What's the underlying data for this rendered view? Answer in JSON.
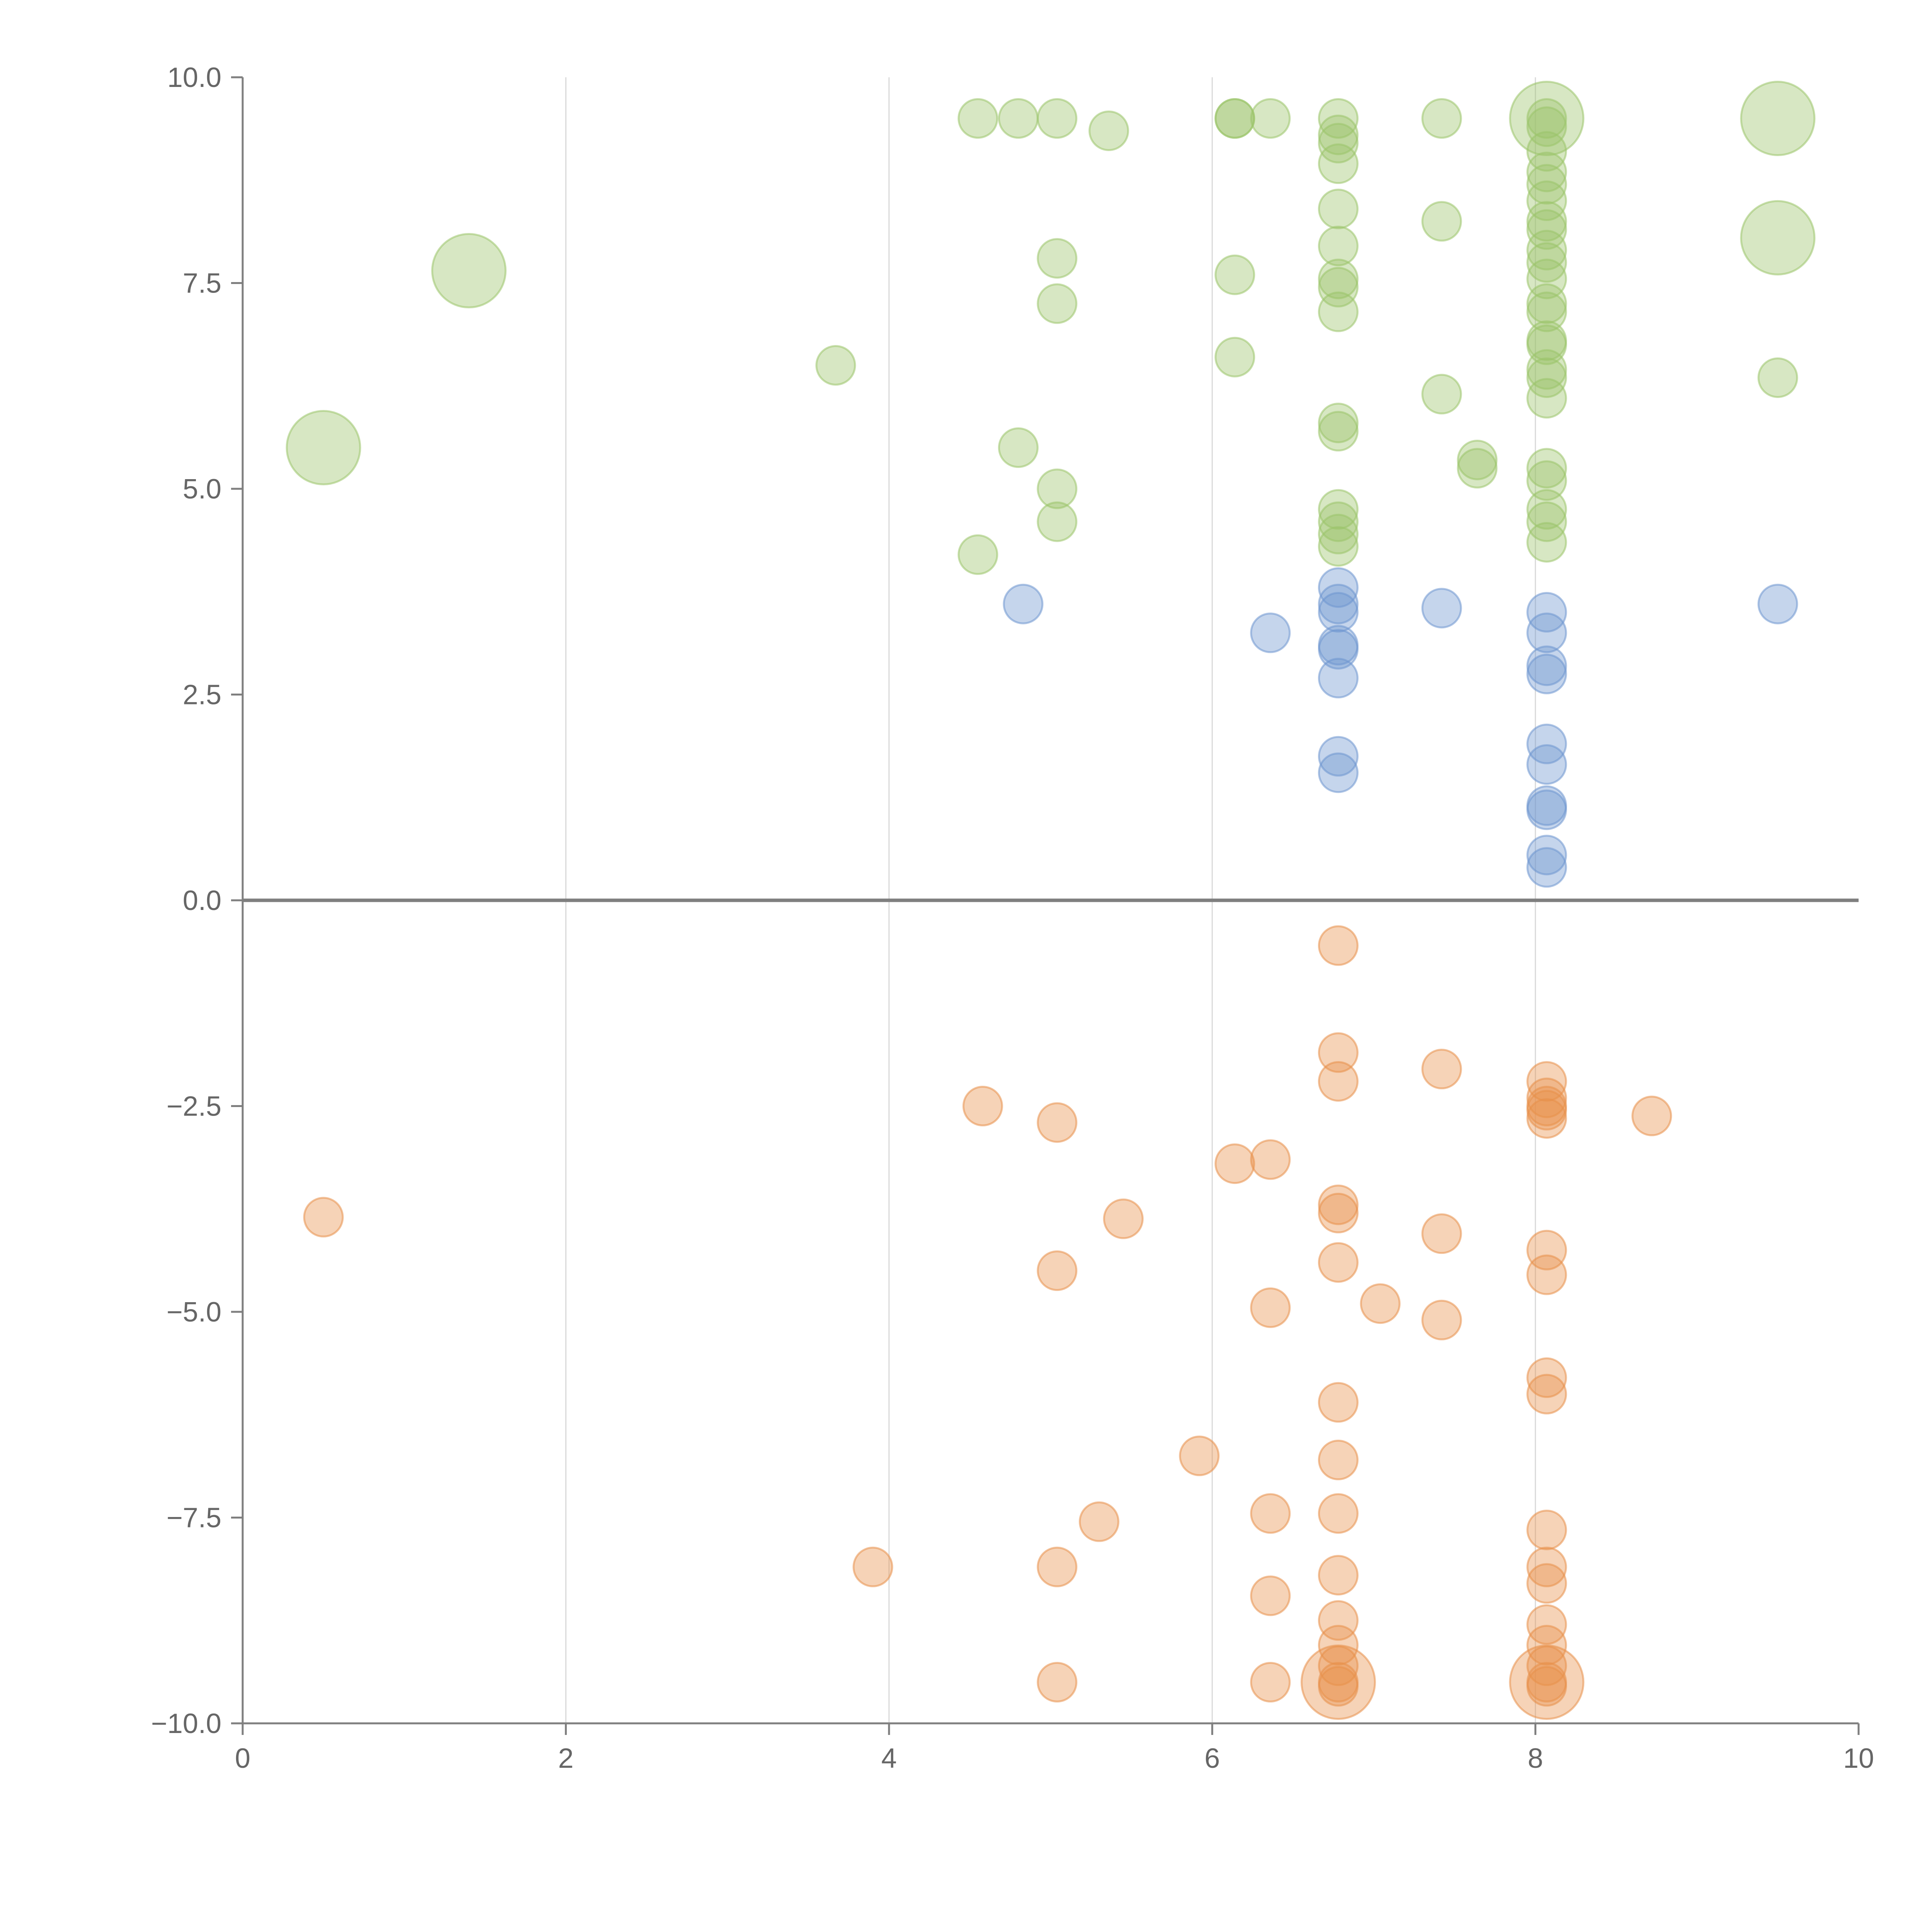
{
  "chart_data": {
    "type": "scatter",
    "title": "",
    "xlabel": "",
    "ylabel": "",
    "xlim": [
      0,
      10
    ],
    "ylim": [
      -10,
      10
    ],
    "x_ticks": [
      "0",
      "2",
      "4",
      "6",
      "8",
      "10"
    ],
    "y_ticks": [
      "10.0",
      "7.5",
      "5.0",
      "2.5",
      "0.0",
      "−2.5",
      "−5.0",
      "−7.5",
      "−10.0"
    ],
    "grid": "vertical",
    "zero_line": true,
    "colors": {
      "green": "#9bc46a",
      "blue": "#6e95cf",
      "orange": "#e8904a",
      "axis": "#7f7f7f",
      "grid": "#d9d9d9"
    },
    "series": [
      {
        "color": "#9bc46a",
        "points": [
          [
            0.5,
            5.5,
            2
          ],
          [
            1.4,
            7.65,
            2
          ],
          [
            9.5,
            9.5,
            2
          ],
          [
            9.5,
            8.05,
            2
          ],
          [
            8.07,
            9.5,
            2
          ],
          [
            4.55,
            9.5,
            1
          ],
          [
            4.8,
            9.5,
            1
          ],
          [
            5.04,
            9.5,
            1
          ],
          [
            5.36,
            9.35,
            1
          ],
          [
            6.14,
            9.5,
            1
          ],
          [
            6.14,
            9.5,
            1
          ],
          [
            6.36,
            9.5,
            1
          ],
          [
            6.78,
            9.5,
            1
          ],
          [
            6.78,
            9.3,
            1
          ],
          [
            6.78,
            9.2,
            1
          ],
          [
            6.78,
            8.95,
            1
          ],
          [
            6.78,
            8.4,
            1
          ],
          [
            6.78,
            7.95,
            1
          ],
          [
            6.78,
            7.55,
            1
          ],
          [
            6.78,
            7.45,
            1
          ],
          [
            6.78,
            7.15,
            1
          ],
          [
            7.42,
            9.5,
            1
          ],
          [
            7.42,
            8.25,
            1
          ],
          [
            7.42,
            6.15,
            1
          ],
          [
            8.07,
            9.5,
            1
          ],
          [
            8.07,
            9.4,
            1
          ],
          [
            8.07,
            9.1,
            1
          ],
          [
            8.07,
            8.85,
            1
          ],
          [
            8.07,
            8.7,
            1
          ],
          [
            8.07,
            8.5,
            1
          ],
          [
            8.07,
            8.25,
            1
          ],
          [
            8.07,
            8.15,
            1
          ],
          [
            8.07,
            7.9,
            1
          ],
          [
            8.07,
            7.75,
            1
          ],
          [
            8.07,
            7.55,
            1
          ],
          [
            8.07,
            7.25,
            1
          ],
          [
            8.07,
            7.15,
            1
          ],
          [
            8.07,
            6.8,
            1
          ],
          [
            8.07,
            6.75,
            1
          ],
          [
            8.07,
            6.45,
            1
          ],
          [
            8.07,
            6.35,
            1
          ],
          [
            8.07,
            6.1,
            1
          ],
          [
            5.04,
            7.8,
            1
          ],
          [
            5.04,
            7.25,
            1
          ],
          [
            6.14,
            7.6,
            1
          ],
          [
            6.14,
            6.6,
            1
          ],
          [
            3.67,
            6.5,
            1
          ],
          [
            9.5,
            6.35,
            1
          ],
          [
            4.8,
            5.5,
            1
          ],
          [
            5.04,
            5.0,
            1
          ],
          [
            5.04,
            4.6,
            1
          ],
          [
            4.55,
            4.2,
            1
          ],
          [
            6.78,
            5.8,
            1
          ],
          [
            6.78,
            5.7,
            1
          ],
          [
            6.78,
            4.75,
            1
          ],
          [
            6.78,
            4.6,
            1
          ],
          [
            6.78,
            4.45,
            1
          ],
          [
            6.78,
            4.3,
            1
          ],
          [
            7.64,
            5.35,
            1
          ],
          [
            7.64,
            5.25,
            1
          ],
          [
            8.07,
            5.25,
            1
          ],
          [
            8.07,
            5.1,
            1
          ],
          [
            8.07,
            4.75,
            1
          ],
          [
            8.07,
            4.6,
            1
          ],
          [
            8.07,
            4.35,
            1
          ]
        ]
      },
      {
        "color": "#6e95cf",
        "points": [
          [
            4.83,
            3.6,
            1
          ],
          [
            6.36,
            3.25,
            1
          ],
          [
            6.78,
            3.8,
            1
          ],
          [
            6.78,
            3.6,
            1
          ],
          [
            6.78,
            3.5,
            1
          ],
          [
            6.78,
            3.1,
            1
          ],
          [
            6.78,
            3.05,
            1
          ],
          [
            6.78,
            2.7,
            1
          ],
          [
            6.78,
            1.75,
            1
          ],
          [
            6.78,
            1.55,
            1
          ],
          [
            7.42,
            3.55,
            1
          ],
          [
            9.5,
            3.6,
            1
          ],
          [
            8.07,
            3.5,
            1
          ],
          [
            8.07,
            3.25,
            1
          ],
          [
            8.07,
            2.85,
            1
          ],
          [
            8.07,
            2.75,
            1
          ],
          [
            8.07,
            1.9,
            1
          ],
          [
            8.07,
            1.65,
            1
          ],
          [
            8.07,
            1.15,
            1
          ],
          [
            8.07,
            1.1,
            1
          ],
          [
            8.07,
            0.55,
            1
          ],
          [
            8.07,
            0.4,
            1
          ]
        ]
      },
      {
        "color": "#e8904a",
        "points": [
          [
            6.78,
            -9.5,
            2
          ],
          [
            8.07,
            -9.5,
            2
          ],
          [
            6.78,
            -0.55,
            1
          ],
          [
            6.78,
            -1.85,
            1
          ],
          [
            6.78,
            -2.2,
            1
          ],
          [
            7.42,
            -2.05,
            1
          ],
          [
            4.58,
            -2.5,
            1
          ],
          [
            5.04,
            -2.7,
            1
          ],
          [
            8.72,
            -2.62,
            1
          ],
          [
            8.07,
            -2.2,
            1
          ],
          [
            8.07,
            -2.4,
            1
          ],
          [
            8.07,
            -2.5,
            1
          ],
          [
            8.07,
            -2.55,
            1
          ],
          [
            8.07,
            -2.65,
            1
          ],
          [
            6.14,
            -3.2,
            1
          ],
          [
            6.36,
            -3.15,
            1
          ],
          [
            0.5,
            -3.85,
            1
          ],
          [
            5.45,
            -3.87,
            1
          ],
          [
            6.78,
            -3.7,
            1
          ],
          [
            6.78,
            -3.8,
            1
          ],
          [
            7.42,
            -4.05,
            1
          ],
          [
            6.78,
            -4.4,
            1
          ],
          [
            5.04,
            -4.5,
            1
          ],
          [
            8.07,
            -4.25,
            1
          ],
          [
            8.07,
            -4.55,
            1
          ],
          [
            7.04,
            -4.9,
            1
          ],
          [
            6.36,
            -4.95,
            1
          ],
          [
            7.42,
            -5.1,
            1
          ],
          [
            8.07,
            -5.8,
            1
          ],
          [
            8.07,
            -6.0,
            1
          ],
          [
            6.78,
            -6.1,
            1
          ],
          [
            5.92,
            -6.75,
            1
          ],
          [
            6.78,
            -6.8,
            1
          ],
          [
            5.3,
            -7.55,
            1
          ],
          [
            6.36,
            -7.45,
            1
          ],
          [
            6.78,
            -7.45,
            1
          ],
          [
            8.07,
            -7.65,
            1
          ],
          [
            3.9,
            -8.1,
            1
          ],
          [
            5.04,
            -8.1,
            1
          ],
          [
            8.07,
            -8.1,
            1
          ],
          [
            6.78,
            -8.2,
            1
          ],
          [
            8.07,
            -8.3,
            1
          ],
          [
            6.36,
            -8.45,
            1
          ],
          [
            6.78,
            -8.75,
            1
          ],
          [
            8.07,
            -8.8,
            1
          ],
          [
            6.78,
            -9.05,
            1
          ],
          [
            8.07,
            -9.05,
            1
          ],
          [
            6.78,
            -9.3,
            1
          ],
          [
            8.07,
            -9.3,
            1
          ],
          [
            5.04,
            -9.5,
            1
          ],
          [
            6.36,
            -9.5,
            1
          ],
          [
            6.78,
            -9.5,
            1
          ],
          [
            6.78,
            -9.55,
            1
          ],
          [
            8.07,
            -9.5,
            1
          ],
          [
            8.07,
            -9.55,
            1
          ]
        ]
      }
    ]
  }
}
